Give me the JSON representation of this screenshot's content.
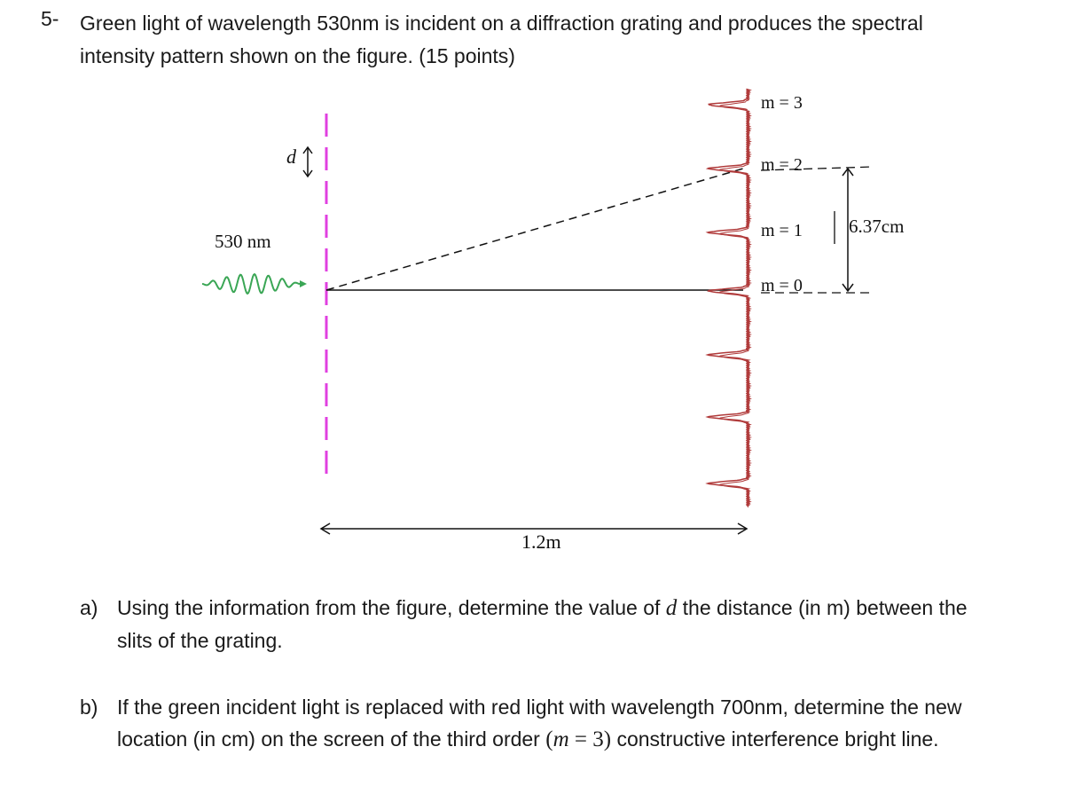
{
  "question": {
    "number": "5-",
    "text_line1": "Green light of wavelength 530nm is incident on a diffraction grating and produces the spectral",
    "text_line2": "intensity pattern shown on the figure. (15 points)"
  },
  "figure": {
    "wavelength_label": "530 nm",
    "slit_spacing_label": "d",
    "distance_label": "1.2m",
    "offset_label": "6.37cm",
    "orders": [
      {
        "label": "m = 3"
      },
      {
        "label": "m = 2"
      },
      {
        "label": "m = 1"
      },
      {
        "label": "m = 0"
      }
    ],
    "colors": {
      "wave": "#3aa655",
      "grating": "#e040e0",
      "intensity": "#b03a3a",
      "lines": "#111111"
    }
  },
  "parts": {
    "a": {
      "label": "a)",
      "pre": "Using the information from the figure, determine the value of ",
      "var": "d",
      "post": " the distance (in m) between the",
      "line2": "slits of the grating."
    },
    "b": {
      "label": "b)",
      "line1": "If the green incident light is replaced with red light with wavelength 700nm, determine the new",
      "pre": "location (in cm) on the screen of the third order ",
      "open": "(",
      "var": "m",
      "eq": " = 3)",
      "post": " constructive interference bright line."
    }
  }
}
